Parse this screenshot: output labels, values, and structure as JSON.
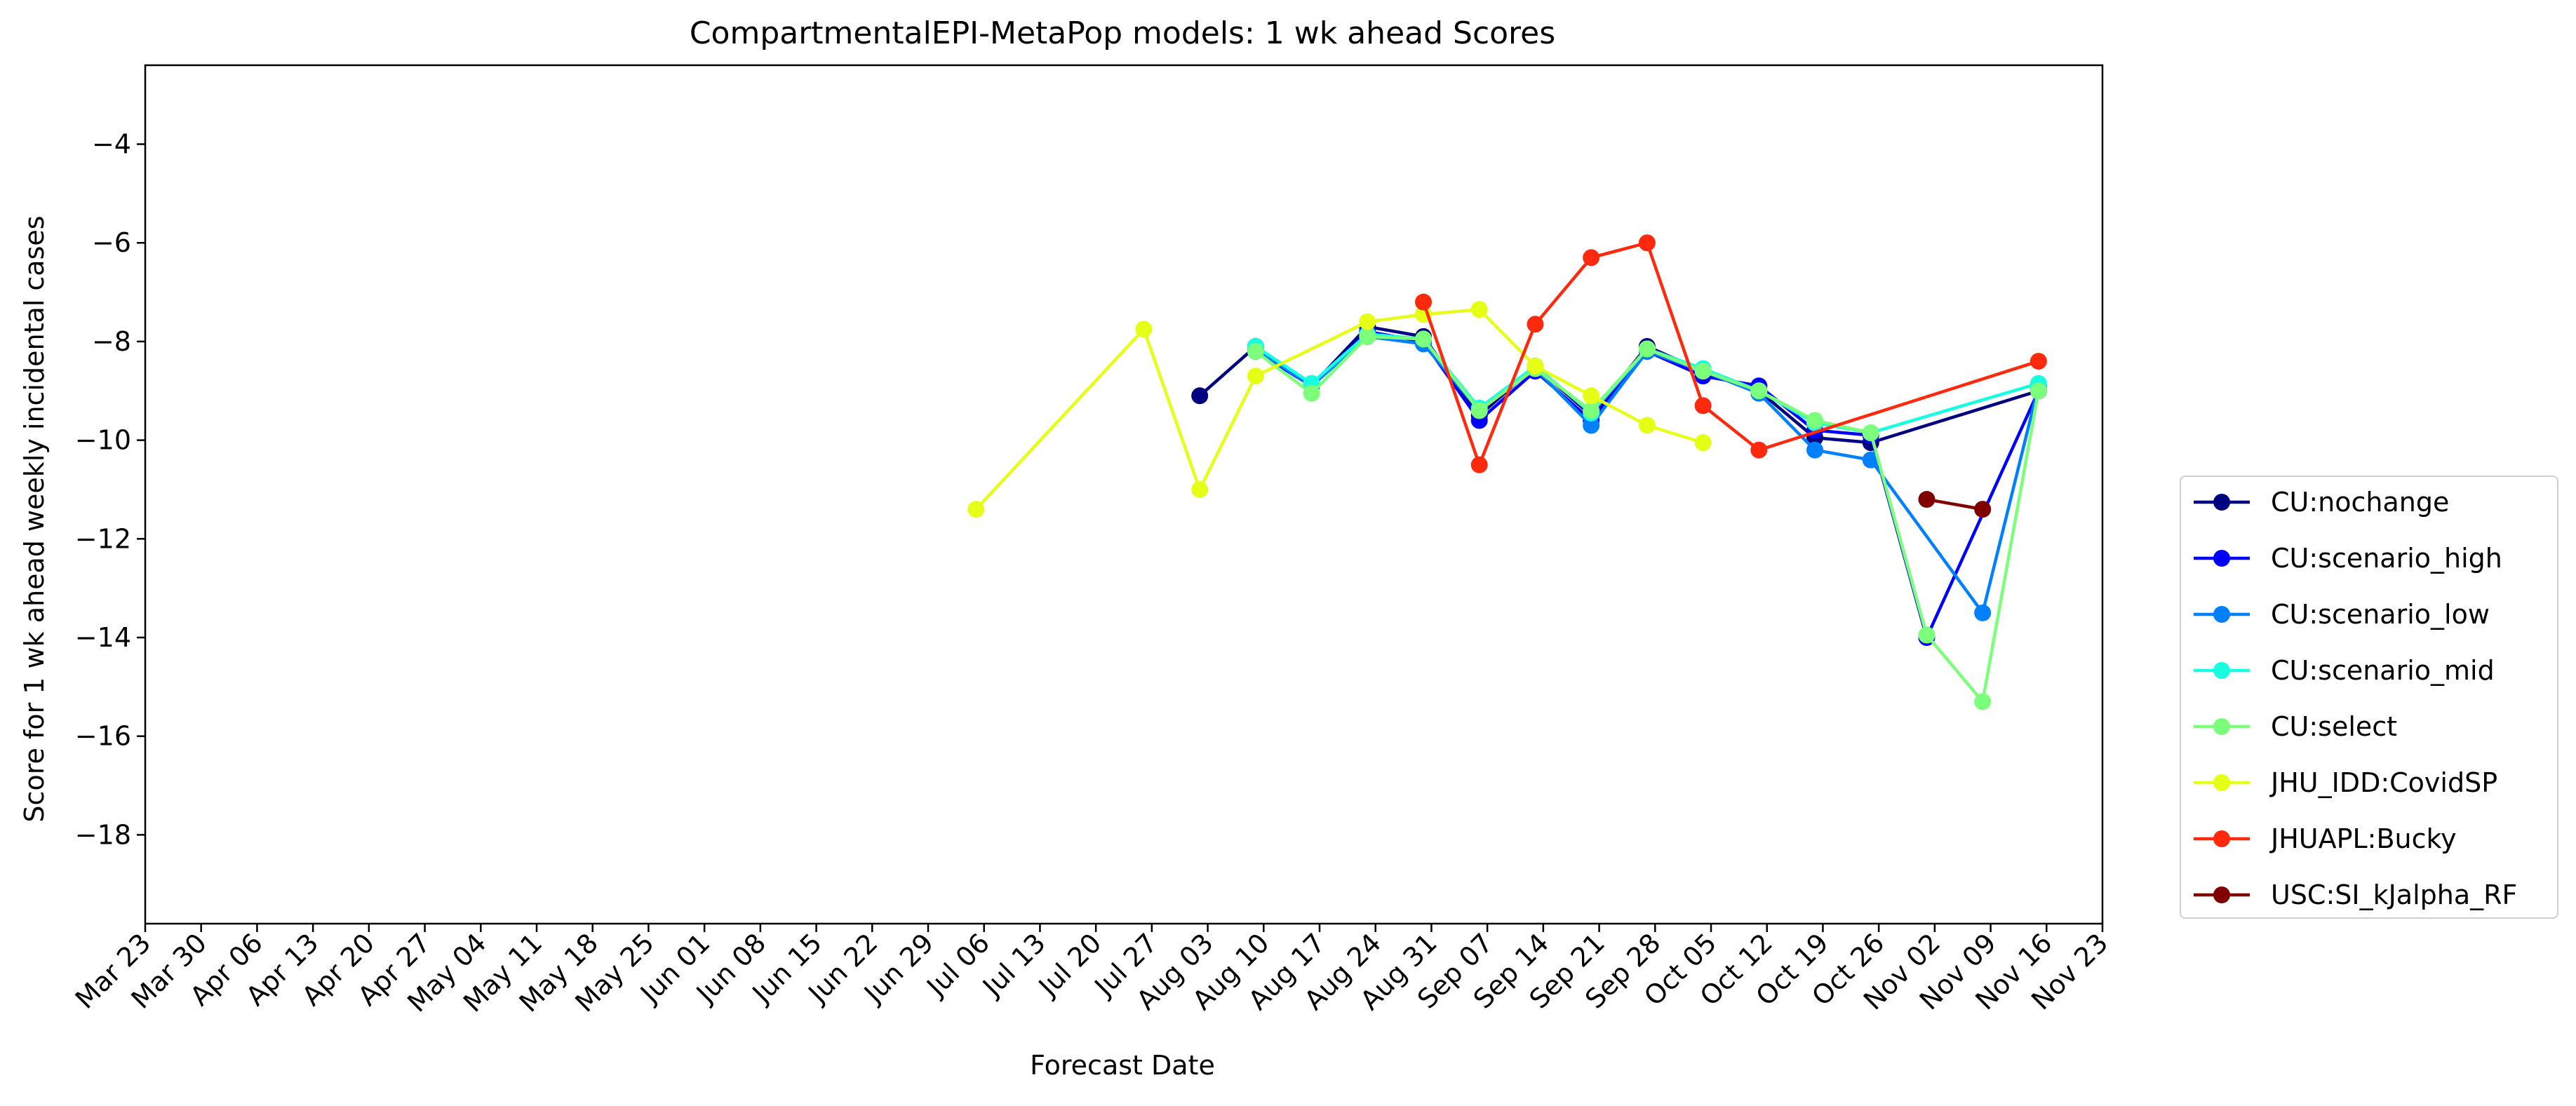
{
  "chart_data": {
    "type": "line",
    "title": "CompartmentalEPI-MetaPop models: 1 wk ahead Scores",
    "xlabel": "Forecast Date",
    "ylabel": "Score for 1 wk ahead weekly incidental cases",
    "x_ticks": [
      "Mar 23",
      "Mar 30",
      "Apr 06",
      "Apr 13",
      "Apr 20",
      "Apr 27",
      "May 04",
      "May 11",
      "May 18",
      "May 25",
      "Jun 01",
      "Jun 08",
      "Jun 15",
      "Jun 22",
      "Jun 29",
      "Jul 06",
      "Jul 13",
      "Jul 20",
      "Jul 27",
      "Aug 03",
      "Aug 10",
      "Aug 17",
      "Aug 24",
      "Aug 31",
      "Sep 07",
      "Sep 14",
      "Sep 21",
      "Sep 28",
      "Oct 05",
      "Oct 12",
      "Oct 19",
      "Oct 26",
      "Nov 02",
      "Nov 09",
      "Nov 16",
      "Nov 23"
    ],
    "y_ticks": [
      -18,
      -16,
      -14,
      -12,
      -10,
      -8,
      -6,
      -4
    ],
    "ylim": [
      -19.8,
      -2.4
    ],
    "xlim_weeks": [
      0,
      35
    ],
    "grid": false,
    "legend_position": "outside-right",
    "series": [
      {
        "name": "CU:nochange",
        "color": "#000080",
        "points": [
          [
            "2020-08-02",
            -9.1
          ],
          [
            "2020-08-09",
            -8.1
          ],
          [
            "2020-08-16",
            -8.9
          ],
          [
            "2020-08-23",
            -7.7
          ],
          [
            "2020-08-30",
            -7.9
          ],
          [
            "2020-09-06",
            -9.5
          ],
          [
            "2020-09-13",
            -8.5
          ],
          [
            "2020-09-20",
            -9.5
          ],
          [
            "2020-09-27",
            -8.1
          ],
          [
            "2020-10-04",
            -8.6
          ],
          [
            "2020-10-11",
            -9.0
          ],
          [
            "2020-10-18",
            -9.95
          ],
          [
            "2020-10-25",
            -10.05
          ],
          [
            "2020-11-15",
            -9.0
          ]
        ]
      },
      {
        "name": "CU:scenario_high",
        "color": "#0000ff",
        "points": [
          [
            "2020-08-09",
            -8.2
          ],
          [
            "2020-08-16",
            -8.9
          ],
          [
            "2020-08-23",
            -7.8
          ],
          [
            "2020-08-30",
            -8.0
          ],
          [
            "2020-09-06",
            -9.6
          ],
          [
            "2020-09-13",
            -8.6
          ],
          [
            "2020-09-20",
            -9.6
          ],
          [
            "2020-09-27",
            -8.2
          ],
          [
            "2020-10-04",
            -8.7
          ],
          [
            "2020-10-11",
            -8.9
          ],
          [
            "2020-10-18",
            -9.8
          ],
          [
            "2020-10-25",
            -9.9
          ],
          [
            "2020-11-01",
            -14.0
          ],
          [
            "2020-11-15",
            -9.0
          ]
        ]
      },
      {
        "name": "CU:scenario_low",
        "color": "#0080ff",
        "points": [
          [
            "2020-08-09",
            -8.15
          ],
          [
            "2020-08-16",
            -8.9
          ],
          [
            "2020-08-23",
            -7.9
          ],
          [
            "2020-08-30",
            -8.05
          ],
          [
            "2020-09-06",
            -9.4
          ],
          [
            "2020-09-13",
            -8.55
          ],
          [
            "2020-09-20",
            -9.7
          ],
          [
            "2020-09-27",
            -8.2
          ],
          [
            "2020-10-04",
            -8.6
          ],
          [
            "2020-10-11",
            -9.05
          ],
          [
            "2020-10-18",
            -10.2
          ],
          [
            "2020-10-25",
            -10.4
          ],
          [
            "2020-11-08",
            -13.5
          ],
          [
            "2020-11-15",
            -8.9
          ]
        ]
      },
      {
        "name": "CU:scenario_mid",
        "color": "#17ffe0",
        "points": [
          [
            "2020-08-09",
            -8.1
          ],
          [
            "2020-08-16",
            -8.85
          ],
          [
            "2020-08-23",
            -7.85
          ],
          [
            "2020-08-30",
            -7.95
          ],
          [
            "2020-09-06",
            -9.35
          ],
          [
            "2020-09-13",
            -8.5
          ],
          [
            "2020-09-20",
            -9.45
          ],
          [
            "2020-09-27",
            -8.15
          ],
          [
            "2020-10-04",
            -8.55
          ],
          [
            "2020-10-11",
            -9.0
          ],
          [
            "2020-10-18",
            -9.65
          ],
          [
            "2020-10-25",
            -9.85
          ],
          [
            "2020-11-15",
            -8.85
          ]
        ]
      },
      {
        "name": "CU:select",
        "color": "#7cff7a",
        "points": [
          [
            "2020-08-09",
            -8.2
          ],
          [
            "2020-08-16",
            -9.05
          ],
          [
            "2020-08-23",
            -7.9
          ],
          [
            "2020-08-30",
            -7.95
          ],
          [
            "2020-09-06",
            -9.4
          ],
          [
            "2020-09-13",
            -8.55
          ],
          [
            "2020-09-20",
            -9.4
          ],
          [
            "2020-09-27",
            -8.15
          ],
          [
            "2020-10-04",
            -8.6
          ],
          [
            "2020-10-11",
            -9.0
          ],
          [
            "2020-10-18",
            -9.6
          ],
          [
            "2020-10-25",
            -9.85
          ],
          [
            "2020-11-01",
            -13.95
          ],
          [
            "2020-11-08",
            -15.3
          ],
          [
            "2020-11-15",
            -9.0
          ]
        ]
      },
      {
        "name": "JHU_IDD:CovidSP",
        "color": "#e6ff17",
        "points": [
          [
            "2020-07-05",
            -11.4
          ],
          [
            "2020-07-26",
            -7.75
          ],
          [
            "2020-08-02",
            -11.0
          ],
          [
            "2020-08-09",
            -8.7
          ],
          [
            "2020-08-23",
            -7.6
          ],
          [
            "2020-08-30",
            -7.45
          ],
          [
            "2020-09-06",
            -7.35
          ],
          [
            "2020-09-13",
            -8.5
          ],
          [
            "2020-09-20",
            -9.1
          ],
          [
            "2020-09-27",
            -9.7
          ],
          [
            "2020-10-04",
            -10.05
          ]
        ]
      },
      {
        "name": "JHUAPL:Bucky",
        "color": "#ff2a0d",
        "points": [
          [
            "2020-08-30",
            -7.2
          ],
          [
            "2020-09-06",
            -10.5
          ],
          [
            "2020-09-13",
            -7.65
          ],
          [
            "2020-09-20",
            -6.3
          ],
          [
            "2020-09-27",
            -6.0
          ],
          [
            "2020-10-04",
            -9.3
          ],
          [
            "2020-10-11",
            -10.2
          ],
          [
            "2020-11-15",
            -8.4
          ]
        ]
      },
      {
        "name": "USC:SI_kJalpha_RF",
        "color": "#800000",
        "points": [
          [
            "2020-11-01",
            -11.2
          ],
          [
            "2020-11-08",
            -11.4
          ]
        ]
      }
    ]
  }
}
